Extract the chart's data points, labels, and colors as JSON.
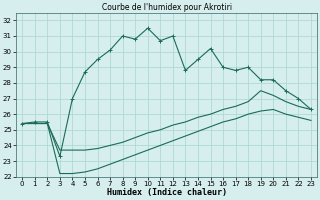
{
  "title": "Courbe de l'humidex pour Akrotiri",
  "xlabel": "Humidex (Indice chaleur)",
  "bg_color": "#d6eeee",
  "grid_color": "#afd8d8",
  "line_color": "#1a6b5a",
  "xlim": [
    -0.5,
    23.5
  ],
  "ylim": [
    22,
    32.5
  ],
  "xticks": [
    0,
    1,
    2,
    3,
    4,
    5,
    6,
    7,
    8,
    9,
    10,
    11,
    12,
    13,
    14,
    15,
    16,
    17,
    18,
    19,
    20,
    21,
    22,
    23
  ],
  "yticks": [
    22,
    23,
    24,
    25,
    26,
    27,
    28,
    29,
    30,
    31,
    32
  ],
  "series1_x": [
    0,
    1,
    2,
    3,
    4,
    5,
    6,
    7,
    8,
    9,
    10,
    11,
    12,
    13,
    14,
    15,
    16,
    17,
    18,
    19,
    20,
    21,
    22,
    23
  ],
  "series1_y": [
    25.4,
    25.5,
    25.5,
    23.3,
    27.0,
    28.7,
    29.5,
    30.1,
    31.0,
    30.8,
    31.5,
    30.7,
    31.0,
    28.8,
    29.5,
    30.2,
    29.0,
    28.8,
    29.0,
    28.2,
    28.2,
    27.5,
    27.0,
    26.3
  ],
  "series2_x": [
    0,
    1,
    2,
    3,
    4,
    5,
    6,
    7,
    8,
    9,
    10,
    11,
    12,
    13,
    14,
    15,
    16,
    17,
    18,
    19,
    20,
    21,
    22,
    23
  ],
  "series2_y": [
    25.4,
    25.4,
    25.4,
    23.7,
    23.7,
    23.7,
    23.8,
    24.0,
    24.2,
    24.5,
    24.8,
    25.0,
    25.3,
    25.5,
    25.8,
    26.0,
    26.3,
    26.5,
    26.8,
    27.5,
    27.2,
    26.8,
    26.5,
    26.3
  ],
  "series3_x": [
    0,
    1,
    2,
    3,
    4,
    5,
    6,
    7,
    8,
    9,
    10,
    11,
    12,
    13,
    14,
    15,
    16,
    17,
    18,
    19,
    20,
    21,
    22,
    23
  ],
  "series3_y": [
    25.4,
    25.4,
    25.4,
    22.2,
    22.2,
    22.3,
    22.5,
    22.8,
    23.1,
    23.4,
    23.7,
    24.0,
    24.3,
    24.6,
    24.9,
    25.2,
    25.5,
    25.7,
    26.0,
    26.2,
    26.3,
    26.0,
    25.8,
    25.6
  ]
}
